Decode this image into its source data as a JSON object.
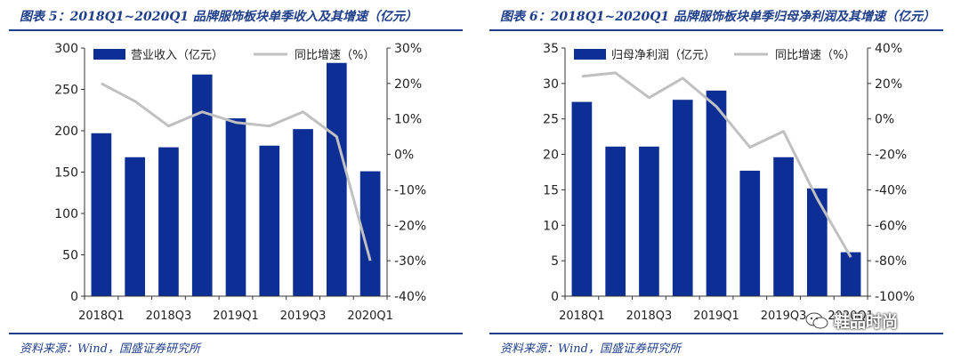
{
  "colors": {
    "bar": "#0d2f95",
    "line": "#c0c0c0",
    "text": "#1f3f8a",
    "axis": "#333333"
  },
  "watermark": {
    "text": "鞋品时尚",
    "icon": "wechat-icon"
  },
  "chart_data": [
    {
      "type": "bar",
      "title": "图表 5：2018Q1~2020Q1 品牌服饰板块单季收入及其增速（亿元）",
      "source": "资料来源：Wind，国盛证券研究所",
      "categories": [
        "2018Q1",
        "2018Q2",
        "2018Q3",
        "2018Q4",
        "2019Q1",
        "2019Q2",
        "2019Q3",
        "2019Q4",
        "2020Q1"
      ],
      "x_tick_labels": [
        "2018Q1",
        "2018Q3",
        "2019Q1",
        "2019Q3",
        "2020Q1"
      ],
      "series": [
        {
          "name": "营业收入（亿元）",
          "type": "bar",
          "axis": "left",
          "values": [
            197,
            168,
            180,
            268,
            215,
            182,
            202,
            282,
            151
          ]
        },
        {
          "name": "同比增速（%）",
          "type": "line",
          "axis": "right",
          "values": [
            20,
            15,
            8,
            12,
            9,
            8,
            12,
            5,
            -30
          ]
        }
      ],
      "left_axis": {
        "min": 0,
        "max": 300,
        "step": 50,
        "ticks": [
          "0",
          "50",
          "100",
          "150",
          "200",
          "250",
          "300"
        ]
      },
      "right_axis": {
        "min": -40,
        "max": 30,
        "step": 10,
        "ticks": [
          "-40%",
          "-30%",
          "-20%",
          "-10%",
          "0%",
          "10%",
          "20%",
          "30%"
        ]
      },
      "legend": [
        "营业收入（亿元）",
        "同比增速（%）"
      ],
      "legend_position": "top"
    },
    {
      "type": "bar",
      "title": "图表 6：2018Q1~2020Q1 品牌服饰板块单季归母净利润及其增速（亿元）",
      "source": "资料来源：Wind，国盛证券研究所",
      "categories": [
        "2018Q1",
        "2018Q2",
        "2018Q3",
        "2018Q4",
        "2019Q1",
        "2019Q2",
        "2019Q3",
        "2019Q4",
        "2020Q1"
      ],
      "x_tick_labels": [
        "2018Q1",
        "2018Q3",
        "2019Q1",
        "2019Q3",
        "2020Q1"
      ],
      "series": [
        {
          "name": "归母净利润（亿元）",
          "type": "bar",
          "axis": "left",
          "values": [
            27.4,
            21.1,
            21.1,
            27.7,
            29.0,
            17.7,
            19.6,
            15.2,
            6.2
          ]
        },
        {
          "name": "同比增速（%）",
          "type": "line",
          "axis": "right",
          "values": [
            24,
            26,
            12,
            23,
            7,
            -16,
            -7,
            -45,
            -78
          ]
        }
      ],
      "left_axis": {
        "min": 0,
        "max": 35,
        "step": 5,
        "ticks": [
          "0",
          "5",
          "10",
          "15",
          "20",
          "25",
          "30",
          "35"
        ]
      },
      "right_axis": {
        "min": -100,
        "max": 40,
        "step": 20,
        "ticks": [
          "-100%",
          "-80%",
          "-60%",
          "-40%",
          "-20%",
          "0%",
          "20%",
          "40%"
        ]
      },
      "legend": [
        "归母净利润（亿元）",
        "同比增速（%）"
      ],
      "legend_position": "top"
    }
  ]
}
